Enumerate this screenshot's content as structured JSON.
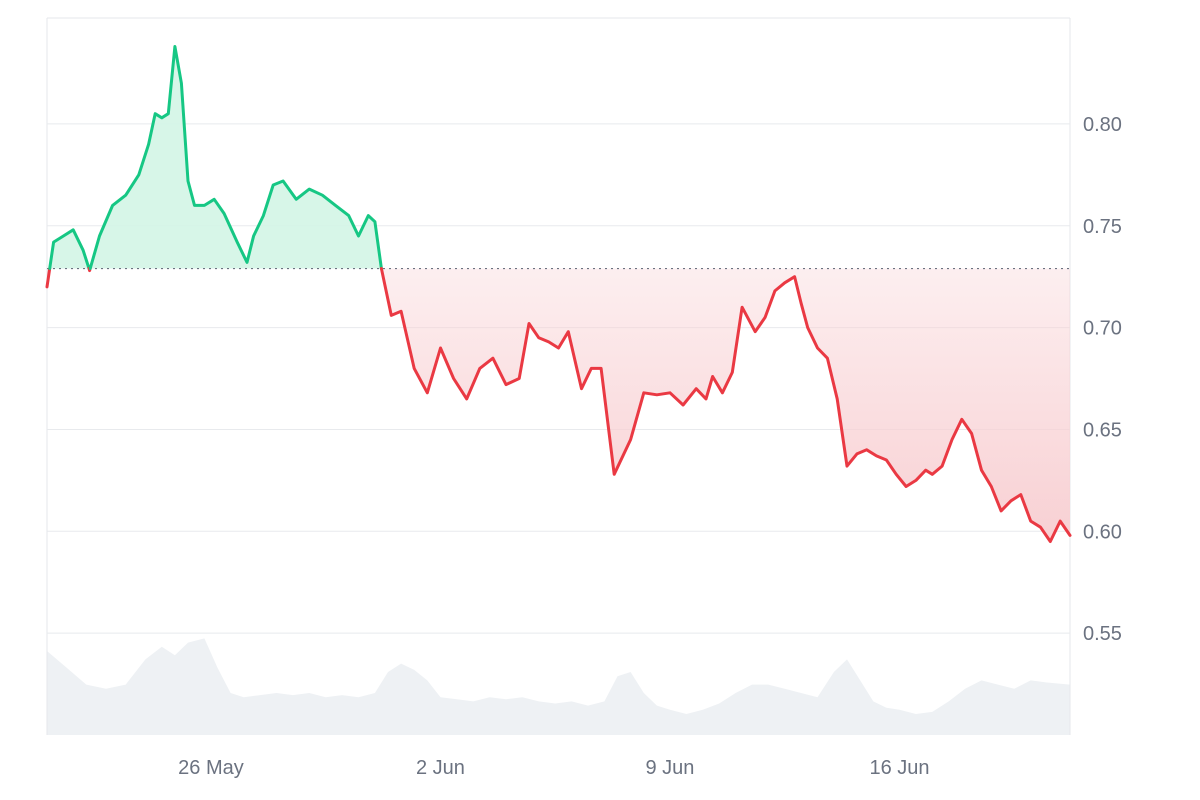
{
  "chart_data": {
    "type": "area",
    "baseline": 0.729,
    "y_ticks": [
      "0.80",
      "0.75",
      "0.70",
      "0.65",
      "0.60",
      "0.55"
    ],
    "y_tick_values": [
      0.8,
      0.75,
      0.7,
      0.65,
      0.6,
      0.55
    ],
    "x_ticks": [
      "26 May",
      "2 Jun",
      "9 Jun",
      "16 Jun"
    ],
    "x_tick_days": [
      5,
      12,
      19,
      26
    ],
    "ylim": [
      0.5,
      0.852
    ],
    "x_range_days": [
      0,
      31.2
    ],
    "grid": true,
    "colors": {
      "up": "#16c784",
      "up_fill": "#d3f5e6",
      "down": "#ea3943",
      "down_fill": "#f8d0d3",
      "volume": "#eef1f4",
      "axis_text": "#6b7280"
    },
    "price": {
      "x": [
        0,
        0.2,
        0.5,
        0.8,
        1.1,
        1.3,
        1.6,
        2.0,
        2.4,
        2.8,
        3.1,
        3.3,
        3.5,
        3.7,
        3.9,
        4.1,
        4.3,
        4.5,
        4.8,
        5.1,
        5.4,
        5.8,
        6.1,
        6.3,
        6.6,
        6.9,
        7.2,
        7.6,
        8.0,
        8.4,
        8.8,
        9.2,
        9.5,
        9.8,
        10.0,
        10.2,
        10.5,
        10.8,
        11.2,
        11.6,
        12.0,
        12.4,
        12.8,
        13.2,
        13.6,
        14.0,
        14.4,
        14.7,
        15.0,
        15.3,
        15.6,
        15.9,
        16.3,
        16.6,
        16.9,
        17.3,
        17.8,
        18.2,
        18.6,
        19.0,
        19.4,
        19.8,
        20.1,
        20.3,
        20.6,
        20.9,
        21.2,
        21.6,
        21.9,
        22.2,
        22.5,
        22.8,
        23.0,
        23.2,
        23.5,
        23.8,
        24.1,
        24.4,
        24.7,
        25.0,
        25.3,
        25.6,
        25.9,
        26.2,
        26.5,
        26.8,
        27.0,
        27.3,
        27.6,
        27.9,
        28.2,
        28.5,
        28.8,
        29.1,
        29.4,
        29.7,
        30.0,
        30.3,
        30.6,
        30.9,
        31.2
      ],
      "y": [
        0.72,
        0.742,
        0.745,
        0.748,
        0.738,
        0.728,
        0.745,
        0.76,
        0.765,
        0.775,
        0.79,
        0.805,
        0.803,
        0.805,
        0.838,
        0.82,
        0.772,
        0.76,
        0.76,
        0.763,
        0.756,
        0.742,
        0.732,
        0.745,
        0.755,
        0.77,
        0.772,
        0.763,
        0.768,
        0.765,
        0.76,
        0.755,
        0.745,
        0.755,
        0.752,
        0.729,
        0.706,
        0.708,
        0.68,
        0.668,
        0.69,
        0.675,
        0.665,
        0.68,
        0.685,
        0.672,
        0.675,
        0.702,
        0.695,
        0.693,
        0.69,
        0.698,
        0.67,
        0.68,
        0.68,
        0.628,
        0.645,
        0.668,
        0.667,
        0.668,
        0.662,
        0.67,
        0.665,
        0.676,
        0.668,
        0.678,
        0.71,
        0.698,
        0.705,
        0.718,
        0.722,
        0.725,
        0.712,
        0.7,
        0.69,
        0.685,
        0.665,
        0.632,
        0.638,
        0.64,
        0.637,
        0.635,
        0.628,
        0.622,
        0.625,
        0.63,
        0.628,
        0.632,
        0.645,
        0.655,
        0.648,
        0.63,
        0.622,
        0.61,
        0.615,
        0.618,
        0.605,
        0.602,
        0.595,
        0.605,
        0.598
      ]
    },
    "volume": {
      "x": [
        0,
        0.6,
        1.2,
        1.8,
        2.4,
        3.0,
        3.5,
        3.9,
        4.3,
        4.8,
        5.2,
        5.6,
        6.0,
        6.5,
        7.0,
        7.5,
        8.0,
        8.5,
        9.0,
        9.5,
        10.0,
        10.4,
        10.8,
        11.2,
        11.6,
        12.0,
        12.5,
        13.0,
        13.5,
        14.0,
        14.5,
        15.0,
        15.5,
        16.0,
        16.5,
        17.0,
        17.4,
        17.8,
        18.2,
        18.6,
        19.0,
        19.5,
        20.0,
        20.5,
        21.0,
        21.5,
        22.0,
        22.5,
        23.0,
        23.5,
        24.0,
        24.4,
        24.8,
        25.2,
        25.6,
        26.0,
        26.5,
        27.0,
        27.5,
        28.0,
        28.5,
        29.0,
        29.5,
        30.0,
        30.5,
        31.2
      ],
      "v": [
        0.4,
        0.32,
        0.24,
        0.22,
        0.24,
        0.36,
        0.42,
        0.38,
        0.44,
        0.46,
        0.32,
        0.2,
        0.18,
        0.19,
        0.2,
        0.19,
        0.2,
        0.18,
        0.19,
        0.18,
        0.2,
        0.3,
        0.34,
        0.31,
        0.26,
        0.18,
        0.17,
        0.16,
        0.18,
        0.17,
        0.18,
        0.16,
        0.15,
        0.16,
        0.14,
        0.16,
        0.28,
        0.3,
        0.2,
        0.14,
        0.12,
        0.1,
        0.12,
        0.15,
        0.2,
        0.24,
        0.24,
        0.22,
        0.2,
        0.18,
        0.3,
        0.36,
        0.26,
        0.16,
        0.13,
        0.12,
        0.1,
        0.11,
        0.16,
        0.22,
        0.26,
        0.24,
        0.22,
        0.26,
        0.25,
        0.24
      ]
    }
  }
}
